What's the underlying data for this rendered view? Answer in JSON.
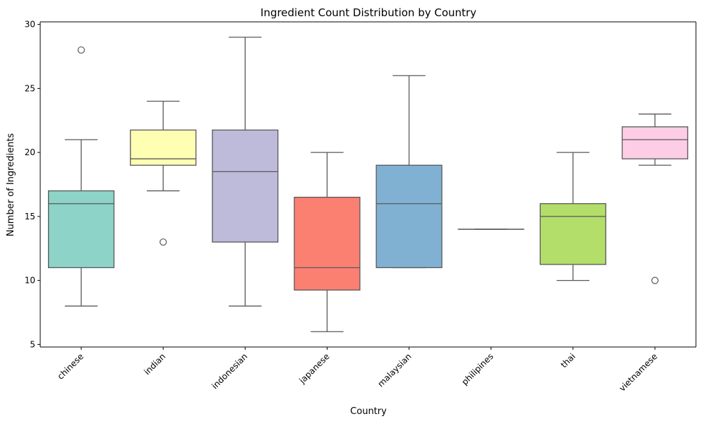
{
  "chart_data": {
    "type": "box",
    "title": "Ingredient Count Distribution by Country",
    "xlabel": "Country",
    "ylabel": "Number of Ingredients",
    "ylim": [
      4.8,
      30.2
    ],
    "yticks": [
      5,
      10,
      15,
      20,
      25,
      30
    ],
    "grid": false,
    "categories": [
      "chinese",
      "indian",
      "indonesian",
      "japanese",
      "malaysian",
      "philipines",
      "thai",
      "vietnamese"
    ],
    "boxes": [
      {
        "category": "chinese",
        "whisker_low": 8,
        "q1": 11,
        "median": 16,
        "q3": 17,
        "whisker_high": 21,
        "outliers": [
          28
        ],
        "color": "#8dd3c7"
      },
      {
        "category": "indian",
        "whisker_low": 17,
        "q1": 19,
        "median": 19.5,
        "q3": 21.75,
        "whisker_high": 24,
        "outliers": [
          13
        ],
        "color": "#ffffb3"
      },
      {
        "category": "indonesian",
        "whisker_low": 8,
        "q1": 13,
        "median": 18.5,
        "q3": 21.75,
        "whisker_high": 29,
        "outliers": [],
        "color": "#bebada"
      },
      {
        "category": "japanese",
        "whisker_low": 6,
        "q1": 9.25,
        "median": 11,
        "q3": 16.5,
        "whisker_high": 20,
        "outliers": [],
        "color": "#fb8072"
      },
      {
        "category": "malaysian",
        "whisker_low": 11,
        "q1": 11,
        "median": 16,
        "q3": 19,
        "whisker_high": 26,
        "outliers": [],
        "color": "#80b1d3"
      },
      {
        "category": "philipines",
        "whisker_low": 14,
        "q1": 14,
        "median": 14,
        "q3": 14,
        "whisker_high": 14,
        "outliers": [],
        "color": "#fdb462"
      },
      {
        "category": "thai",
        "whisker_low": 10,
        "q1": 11.25,
        "median": 15,
        "q3": 16,
        "whisker_high": 20,
        "outliers": [],
        "color": "#b3de69"
      },
      {
        "category": "vietnamese",
        "whisker_low": 19,
        "q1": 19.5,
        "median": 21,
        "q3": 22,
        "whisker_high": 23,
        "outliers": [
          10
        ],
        "color": "#fccde5"
      }
    ]
  }
}
